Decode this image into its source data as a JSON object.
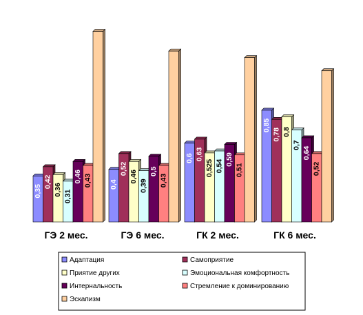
{
  "chart_data": {
    "type": "bar",
    "categories": [
      "ГЭ 2 мес.",
      "ГЭ 6 мес.",
      "ГК 2 мес.",
      "ГК 6 мес."
    ],
    "series": [
      {
        "name": "Адаптация",
        "color": "#8c8cff",
        "values": [
          0.35,
          0.4,
          0.6,
          0.85
        ],
        "labels": [
          "0,35",
          "0,4",
          "0,6",
          "0,85"
        ]
      },
      {
        "name": "Самоприятие",
        "color": "#a0305a",
        "values": [
          0.42,
          0.52,
          0.63,
          0.78
        ],
        "labels": [
          "0,42",
          "0,52",
          "0,63",
          "0,78"
        ]
      },
      {
        "name": "Приятие других",
        "color": "#ffffc8",
        "values": [
          0.36,
          0.46,
          0.525,
          0.8
        ],
        "labels": [
          "0,36",
          "0,46",
          "0,525",
          "0,8"
        ]
      },
      {
        "name": "Эмоциональная комфортность",
        "color": "#d8ffff",
        "values": [
          0.31,
          0.39,
          0.54,
          0.7
        ],
        "labels": [
          "0,31",
          "0,39",
          "0,54",
          "0,7"
        ]
      },
      {
        "name": "Интернальность",
        "color": "#66005a",
        "values": [
          0.46,
          0.5,
          0.59,
          0.64
        ],
        "labels": [
          "0,46",
          "0,5",
          "0,59",
          "0,64"
        ]
      },
      {
        "name": "Стремление к  доминированию",
        "color": "#ff8080",
        "values": [
          0.43,
          0.43,
          0.51,
          0.52
        ],
        "labels": [
          "0,43",
          "0,43",
          "0,51",
          "0,52"
        ]
      },
      {
        "name": "Эскапизм",
        "color": "#ffd0a0",
        "values": [
          1.45,
          1.3,
          1.25,
          1.15
        ],
        "labels": []
      }
    ],
    "legend_position": "bottom",
    "grid": false,
    "ylim": [
      0,
      1.5
    ]
  }
}
